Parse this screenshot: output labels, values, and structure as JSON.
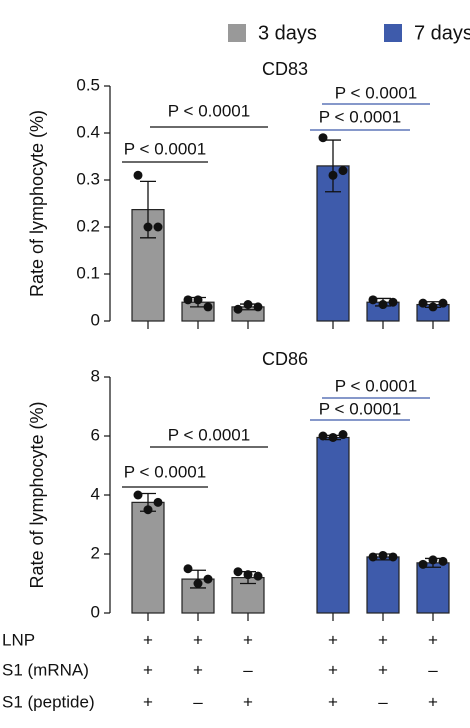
{
  "chart_data": [
    {
      "type": "bar",
      "title": "CD83",
      "y_label": "Rate of lymphocyte (%)",
      "ylim": [
        0,
        0.5
      ],
      "yticks": [
        0,
        0.1,
        0.2,
        0.3,
        0.4,
        0.5
      ],
      "series": [
        {
          "name": "3 days",
          "color": "#999999",
          "values": [
            0.237,
            0.04,
            0.03
          ],
          "errors": [
            0.06,
            0.01,
            0.006
          ],
          "points": [
            [
              0.31,
              0.2,
              0.2
            ],
            [
              0.045,
              0.045,
              0.03
            ],
            [
              0.025,
              0.035,
              0.03
            ]
          ]
        },
        {
          "name": "7 days",
          "color": "#3e5bab",
          "values": [
            0.33,
            0.04,
            0.035
          ],
          "errors": [
            0.055,
            0.008,
            0.006
          ],
          "points": [
            [
              0.39,
              0.31,
              0.32
            ],
            [
              0.045,
              0.035,
              0.04
            ],
            [
              0.038,
              0.03,
              0.038
            ]
          ]
        }
      ],
      "annotations": [
        "P < 0.0001",
        "P < 0.0001",
        "P < 0.0001",
        "P < 0.0001"
      ]
    },
    {
      "type": "bar",
      "title": "CD86",
      "y_label": "Rate of lymphocyte (%)",
      "ylim": [
        0,
        8
      ],
      "yticks": [
        0,
        2,
        4,
        6,
        8
      ],
      "series": [
        {
          "name": "3 days",
          "color": "#999999",
          "values": [
            3.75,
            1.15,
            1.2
          ],
          "errors": [
            0.3,
            0.3,
            0.2
          ],
          "points": [
            [
              4.0,
              3.5,
              3.75
            ],
            [
              1.5,
              1.0,
              1.15
            ],
            [
              1.4,
              1.3,
              1.25
            ]
          ]
        },
        {
          "name": "7 days",
          "color": "#3e5bab",
          "values": [
            5.95,
            1.9,
            1.7
          ],
          "errors": [
            0.07,
            0.1,
            0.15
          ],
          "points": [
            [
              6.0,
              5.95,
              6.05
            ],
            [
              1.9,
              1.95,
              1.9
            ],
            [
              1.65,
              1.8,
              1.75
            ]
          ]
        }
      ],
      "annotations": [
        "P < 0.0001",
        "P < 0.0001",
        "P < 0.0001",
        "P < 0.0001"
      ]
    }
  ],
  "conditions": {
    "rows": [
      {
        "label": "LNP",
        "marks": [
          "+",
          "+",
          "+",
          "+",
          "+",
          "+"
        ]
      },
      {
        "label": "S1 (mRNA)",
        "marks": [
          "+",
          "+",
          "–",
          "+",
          "+",
          "–"
        ]
      },
      {
        "label": "S1 (peptide)",
        "marks": [
          "+",
          "–",
          "+",
          "+",
          "–",
          "+"
        ]
      }
    ]
  }
}
